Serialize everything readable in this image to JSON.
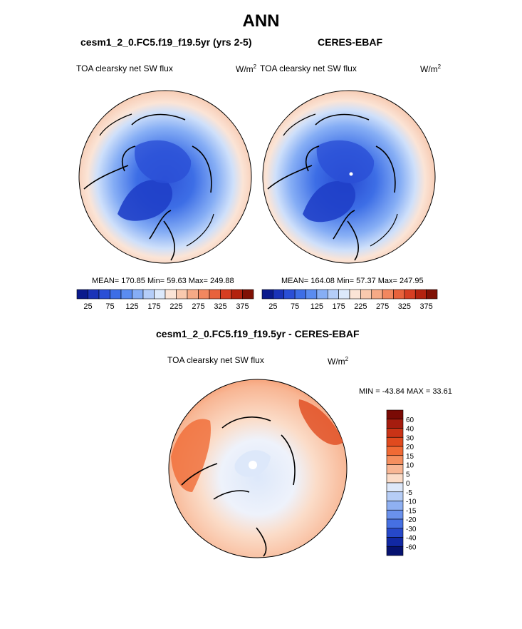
{
  "main_title": "ANN",
  "panels": {
    "model": {
      "title": "cesm1_2_0.FC5.f19_f19.5yr (yrs 2-5)",
      "variable": "TOA clearsky net SW flux",
      "units": "W/m",
      "units_exp": "2",
      "stats": "MEAN= 170.85  Min=  59.63  Max= 249.88"
    },
    "obs": {
      "title": "CERES-EBAF",
      "variable": "TOA clearsky net SW flux",
      "units": "W/m",
      "units_exp": "2",
      "stats": "MEAN= 164.08  Min=  57.37  Max= 247.95"
    },
    "diff": {
      "title": "cesm1_2_0.FC5.f19_f19.5yr - CERES-EBAF",
      "variable": "TOA clearsky net SW flux",
      "units": "W/m",
      "units_exp": "2",
      "stats": "MIN = -43.84 MAX =  33.61"
    }
  },
  "colorbar_main": {
    "labels": [
      "25",
      "75",
      "125",
      "175",
      "225",
      "275",
      "325",
      "375"
    ],
    "colors": [
      "#0a1a8c",
      "#1a33b8",
      "#2a4fd6",
      "#3d6ee6",
      "#5a8cf0",
      "#86aef5",
      "#b4cdf8",
      "#dce9fb",
      "#fbe4d6",
      "#f9c9ae",
      "#f6aa86",
      "#f2875f",
      "#e8623c",
      "#d63e22",
      "#b3230f",
      "#801105"
    ]
  },
  "colorbar_diff": {
    "labels": [
      "60",
      "40",
      "30",
      "20",
      "15",
      "10",
      "5",
      "0",
      "-5",
      "-10",
      "-15",
      "-20",
      "-30",
      "-40",
      "-60"
    ],
    "colors": [
      "#7a0a05",
      "#a51c0e",
      "#c93316",
      "#e04a1e",
      "#f06a35",
      "#f58f5f",
      "#f8b694",
      "#fbdcc8",
      "#dde8fa",
      "#b6cdf6",
      "#8fb0f2",
      "#6a91ec",
      "#4670e2",
      "#2648c9",
      "#1128a3",
      "#061270"
    ]
  }
}
